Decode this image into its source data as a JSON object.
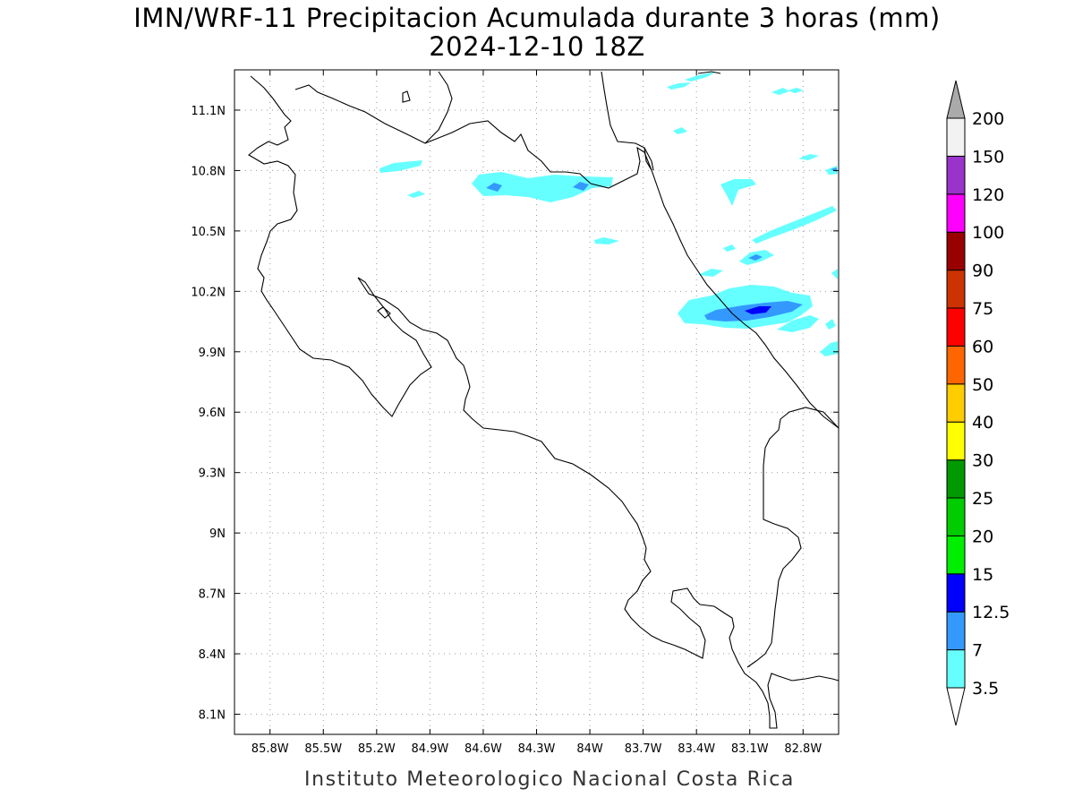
{
  "header": {
    "title_line1": "IMN/WRF-11 Precipitacion Acumulada durante 3 horas (mm)",
    "title_line2": "2024-12-10 18Z"
  },
  "footer": {
    "credit": "Instituto Meteorologico Nacional Costa Rica"
  },
  "map": {
    "lon_range": [
      -86.0,
      -82.6
    ],
    "lat_range": [
      8.0,
      11.3
    ],
    "lon_ticks": [
      {
        "value": -85.8,
        "label": "85.8W"
      },
      {
        "value": -85.5,
        "label": "85.5W"
      },
      {
        "value": -85.2,
        "label": "85.2W"
      },
      {
        "value": -84.9,
        "label": "84.9W"
      },
      {
        "value": -84.6,
        "label": "84.6W"
      },
      {
        "value": -84.3,
        "label": "84.3W"
      },
      {
        "value": -84.0,
        "label": "84W"
      },
      {
        "value": -83.7,
        "label": "83.7W"
      },
      {
        "value": -83.4,
        "label": "83.4W"
      },
      {
        "value": -83.1,
        "label": "83.1W"
      },
      {
        "value": -82.8,
        "label": "82.8W"
      }
    ],
    "lat_ticks": [
      {
        "value": 11.1,
        "label": "11.1N"
      },
      {
        "value": 10.8,
        "label": "10.8N"
      },
      {
        "value": 10.5,
        "label": "10.5N"
      },
      {
        "value": 10.2,
        "label": "10.2N"
      },
      {
        "value": 9.9,
        "label": "9.9N"
      },
      {
        "value": 9.6,
        "label": "9.6N"
      },
      {
        "value": 9.3,
        "label": "9.3N"
      },
      {
        "value": 9.0,
        "label": "9N"
      },
      {
        "value": 8.7,
        "label": "8.7N"
      },
      {
        "value": 8.4,
        "label": "8.4N"
      },
      {
        "value": 8.1,
        "label": "8.1N"
      }
    ],
    "grid": true,
    "coastline_color": "#000000"
  },
  "colorbar": {
    "placement": "right",
    "bins": [
      {
        "label": "3.5",
        "color": "#66ffff"
      },
      {
        "label": "7",
        "color": "#3399ff"
      },
      {
        "label": "12.5",
        "color": "#0000ff"
      },
      {
        "label": "15",
        "color": "#00ee00"
      },
      {
        "label": "20",
        "color": "#00cc00"
      },
      {
        "label": "25",
        "color": "#009900"
      },
      {
        "label": "30",
        "color": "#ffff00"
      },
      {
        "label": "40",
        "color": "#ffcc00"
      },
      {
        "label": "50",
        "color": "#ff6600"
      },
      {
        "label": "60",
        "color": "#ff0000"
      },
      {
        "label": "75",
        "color": "#cc3300"
      },
      {
        "label": "90",
        "color": "#990000"
      },
      {
        "label": "100",
        "color": "#ff00ff"
      },
      {
        "label": "120",
        "color": "#9933cc"
      },
      {
        "label": "150",
        "color": "#f2f2f2"
      }
    ],
    "top_label": "200",
    "over_color": "#aaaaaa",
    "under_color": "#ffffff"
  },
  "precip_areas": [
    {
      "name": "north-plains-band",
      "lon": -84.55,
      "lat": 10.72,
      "class": "3.5"
    },
    {
      "name": "north-plains-core",
      "lon": -84.4,
      "lat": 10.7,
      "class": "7"
    },
    {
      "name": "caribbean-limon-band",
      "lon": -83.05,
      "lat": 10.08,
      "class": "3.5"
    },
    {
      "name": "caribbean-limon-core",
      "lon": -82.95,
      "lat": 10.1,
      "class": "12.5"
    },
    {
      "name": "northeast-offshore",
      "lon": -82.95,
      "lat": 10.4,
      "class": "7"
    }
  ]
}
